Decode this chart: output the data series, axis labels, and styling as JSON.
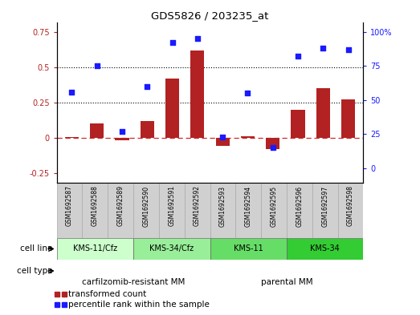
{
  "title": "GDS5826 / 203235_at",
  "samples": [
    "GSM1692587",
    "GSM1692588",
    "GSM1692589",
    "GSM1692590",
    "GSM1692591",
    "GSM1692592",
    "GSM1692593",
    "GSM1692594",
    "GSM1692595",
    "GSM1692596",
    "GSM1692597",
    "GSM1692598"
  ],
  "transformed_count": [
    0.005,
    0.1,
    -0.02,
    0.12,
    0.42,
    0.62,
    -0.06,
    0.01,
    -0.08,
    0.2,
    0.35,
    0.27
  ],
  "percentile_rank": [
    0.56,
    0.75,
    0.27,
    0.6,
    0.92,
    0.95,
    0.23,
    0.55,
    0.15,
    0.82,
    0.88,
    0.87
  ],
  "bar_color": "#b22222",
  "dot_color": "#1a1aff",
  "ylim_left": [
    -0.32,
    0.82
  ],
  "ylim_right": [
    -0.107,
    1.073
  ],
  "yticks_left": [
    -0.25,
    0.0,
    0.25,
    0.5,
    0.75
  ],
  "ytick_labels_left": [
    "-0.25",
    "0",
    "0.25",
    "0.5",
    "0.75"
  ],
  "yticks_right": [
    0.0,
    0.25,
    0.5,
    0.75,
    1.0
  ],
  "ytick_labels_right": [
    "0",
    "25",
    "50",
    "75",
    "100%"
  ],
  "hlines": [
    0.25,
    0.5
  ],
  "cell_line_groups": [
    {
      "label": "KMS-11/Cfz",
      "start": 0,
      "end": 3,
      "color": "#ccffcc"
    },
    {
      "label": "KMS-34/Cfz",
      "start": 3,
      "end": 6,
      "color": "#99ee99"
    },
    {
      "label": "KMS-11",
      "start": 6,
      "end": 9,
      "color": "#66dd66"
    },
    {
      "label": "KMS-34",
      "start": 9,
      "end": 12,
      "color": "#33cc33"
    }
  ],
  "cell_type_groups": [
    {
      "label": "carfilzomib-resistant MM",
      "start": 0,
      "end": 6,
      "color": "#ee88ee"
    },
    {
      "label": "parental MM",
      "start": 6,
      "end": 12,
      "color": "#cc66cc"
    }
  ],
  "legend_items": [
    {
      "label": "transformed count",
      "color": "#b22222",
      "marker": "s"
    },
    {
      "label": "percentile rank within the sample",
      "color": "#1a1aff",
      "marker": "s"
    }
  ],
  "zero_line_color": "#cc0000",
  "sample_box_color": "#d0d0d0",
  "sample_edge_color": "#aaaaaa"
}
